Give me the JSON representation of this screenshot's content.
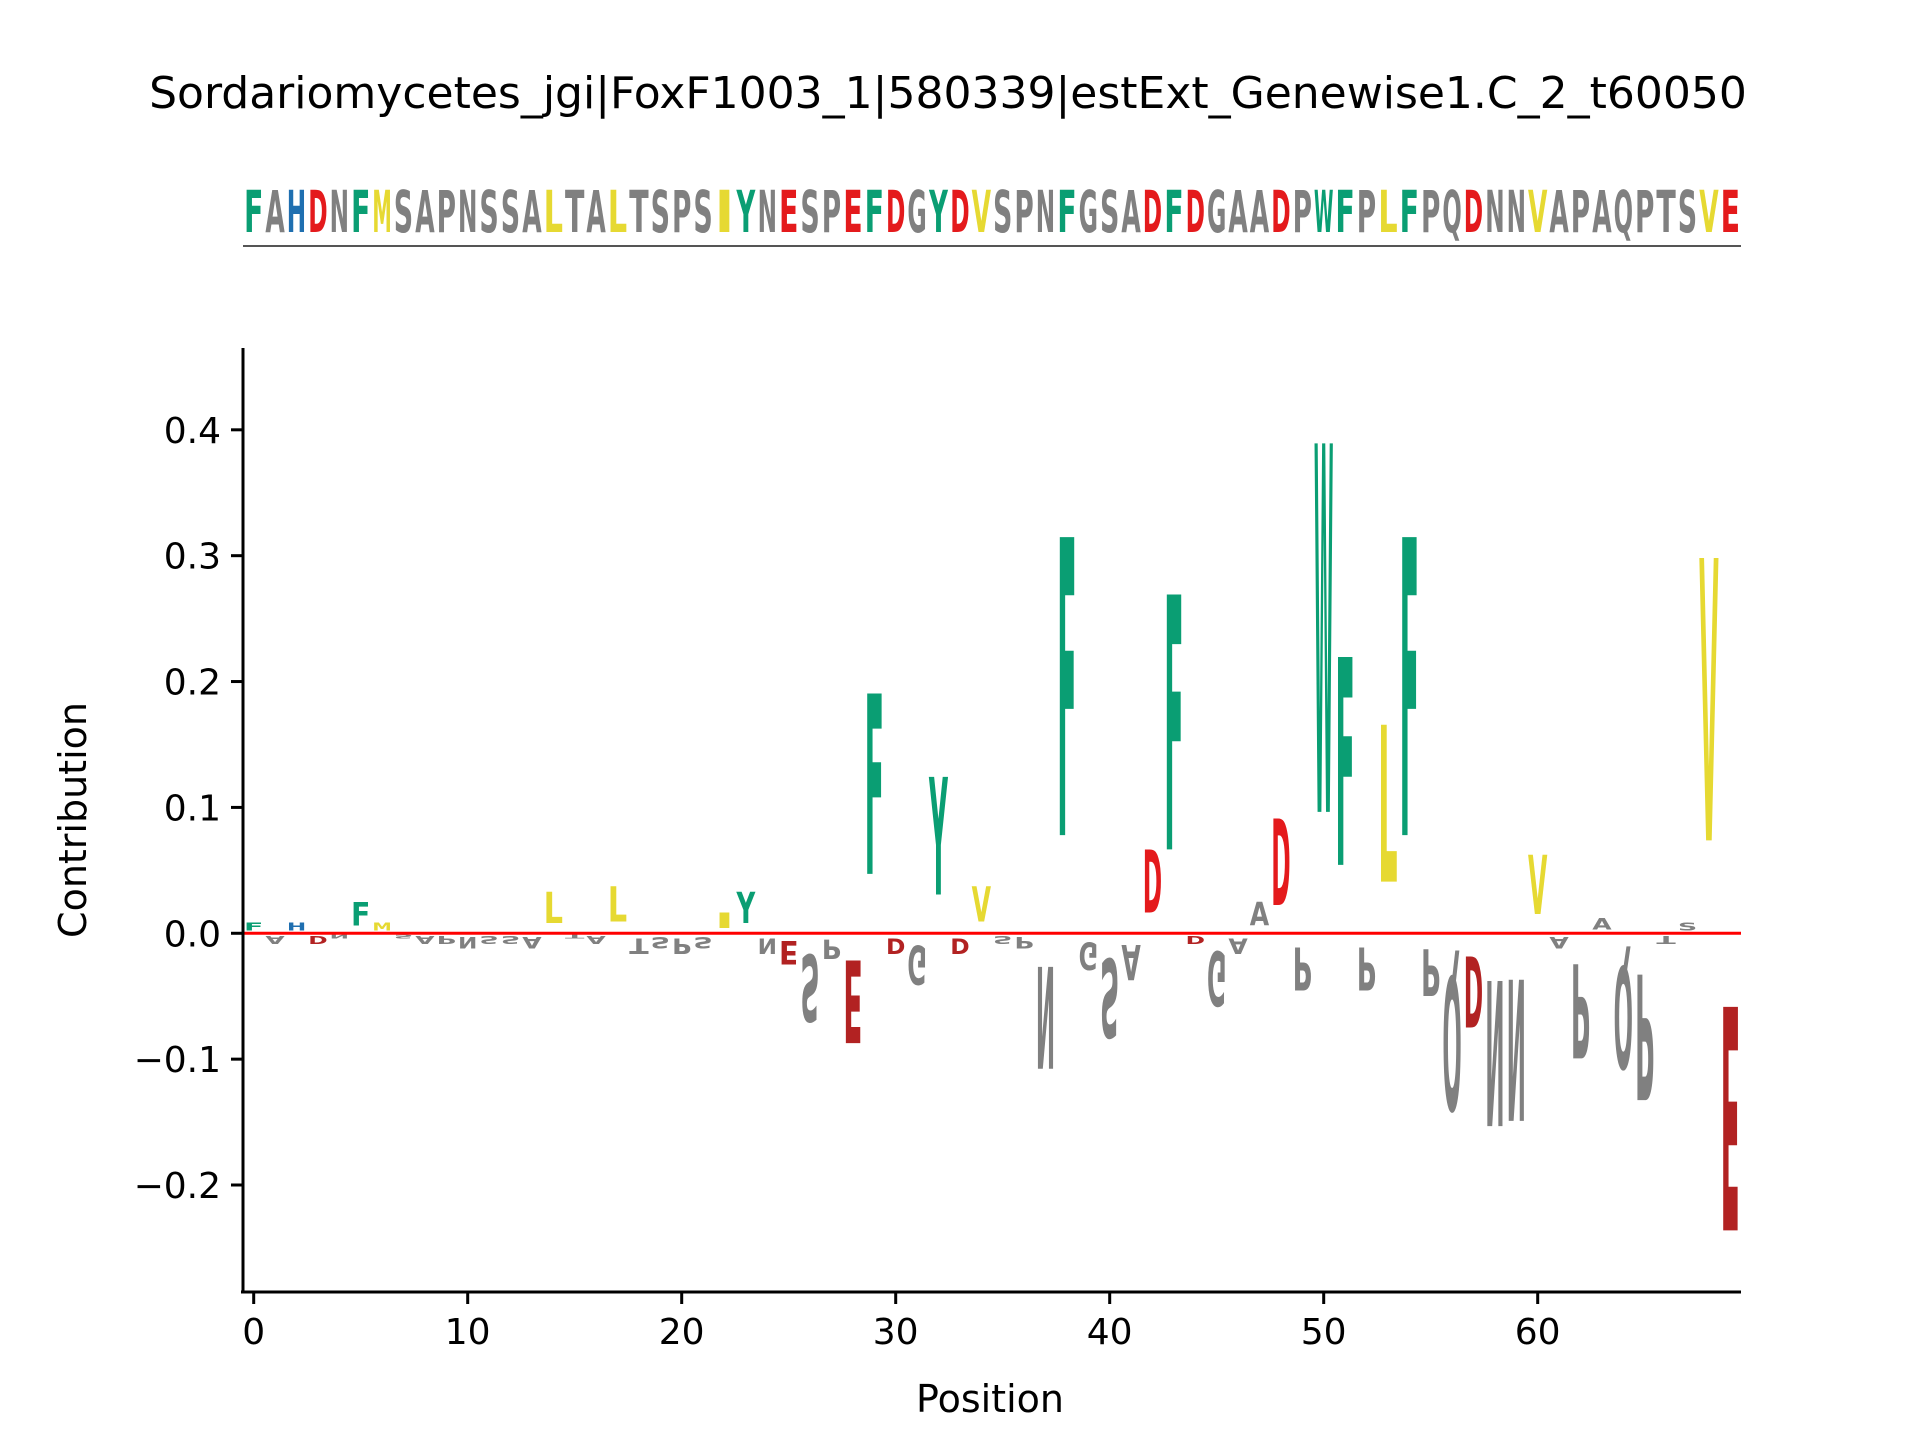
{
  "chart_data": {
    "type": "sequence-logo",
    "title": "Sordariomycetes_jgi|FoxF1003_1|580339|estExt_Genewise1.C_2_t60050",
    "sequence": "FAHDNFMSAPNSSALTALTSPSIYNESPEFDGYDVSPNFGSADFDGAADPWFPLFPQDNNVAPAQPTSVE",
    "xlabel": "Position",
    "ylabel": "Contribution",
    "xlim": [
      -0.5,
      69.5
    ],
    "ylim": [
      -0.285,
      0.465
    ],
    "x_ticks": [
      0,
      10,
      20,
      30,
      40,
      50,
      60
    ],
    "y_ticks": [
      -0.2,
      -0.1,
      0.0,
      0.1,
      0.2,
      0.3,
      0.4
    ],
    "y_tick_labels": [
      "−0.2",
      "−0.1",
      "0.0",
      "0.1",
      "0.2",
      "0.3",
      "0.4"
    ],
    "baseline_color": "#ff0000",
    "residue_colors": {
      "acidic": "#e41a1c",
      "hydrophobic": "#e6d932",
      "aromatic_polar": "#0a9e73",
      "basic": "#1f6fb0",
      "other": "#808080"
    },
    "contributions": [
      0.01,
      -0.01,
      0.01,
      -0.01,
      -0.005,
      0.03,
      0.01,
      -0.005,
      -0.01,
      -0.01,
      -0.015,
      -0.01,
      -0.01,
      -0.015,
      0.04,
      -0.005,
      -0.01,
      0.045,
      -0.02,
      -0.015,
      -0.02,
      -0.015,
      0.02,
      0.04,
      -0.02,
      -0.03,
      -0.085,
      -0.025,
      -0.105,
      0.23,
      -0.02,
      -0.05,
      0.15,
      -0.02,
      0.045,
      -0.01,
      -0.015,
      -0.13,
      0.38,
      -0.035,
      -0.1,
      -0.045,
      0.08,
      0.325,
      -0.01,
      -0.07,
      -0.02,
      0.03,
      0.11,
      -0.055,
      0.47,
      0.265,
      -0.055,
      0.2,
      0.38,
      -0.06,
      -0.17,
      -0.09,
      -0.185,
      -0.18,
      0.075,
      -0.015,
      -0.12,
      0.015,
      -0.13,
      -0.16,
      -0.01,
      0.01,
      0.36,
      -0.285
    ]
  }
}
